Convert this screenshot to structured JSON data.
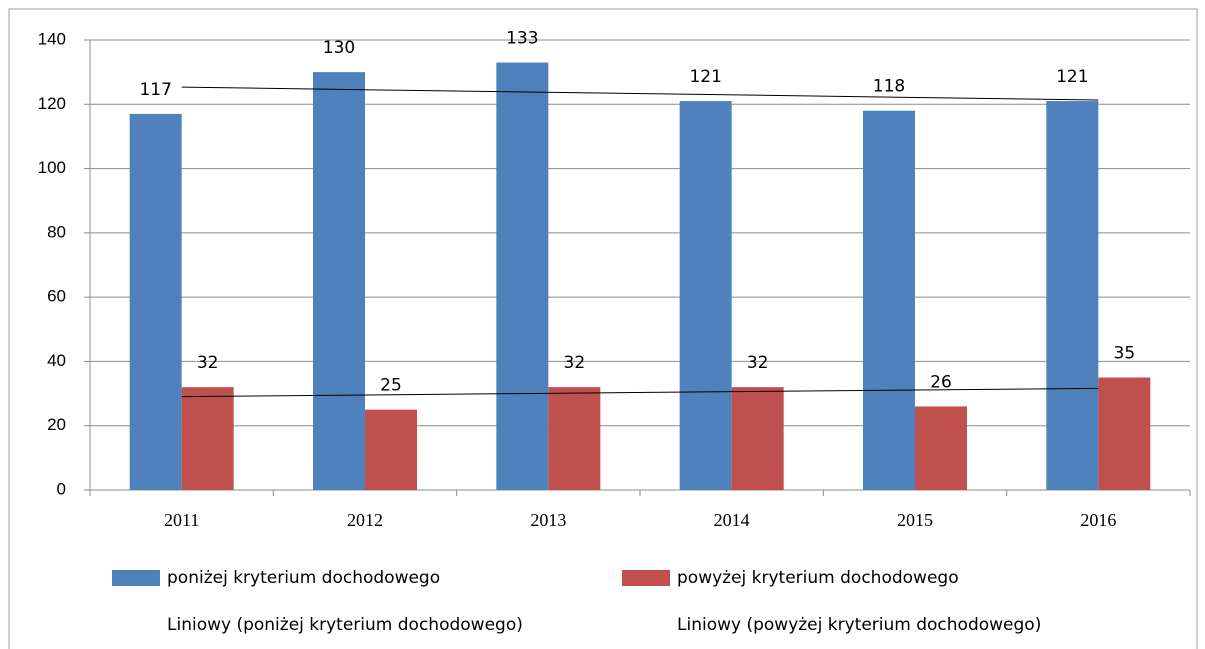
{
  "chart_data": {
    "type": "bar",
    "categories": [
      "2011",
      "2012",
      "2013",
      "2014",
      "2015",
      "2016"
    ],
    "series": [
      {
        "name": "poniżej kryterium dochodowego",
        "color": "#4f81bd",
        "values": [
          117,
          130,
          133,
          121,
          118,
          121
        ],
        "trendline": "Liniowy (poniżej kryterium dochodowego)"
      },
      {
        "name": "powyżej kryterium dochodowego",
        "color": "#c0504d",
        "values": [
          32,
          25,
          32,
          32,
          26,
          35
        ],
        "trendline": "Liniowy (powyżej kryterium dochodowego)"
      }
    ],
    "ylim": [
      0,
      140
    ],
    "yticks": [
      0,
      20,
      40,
      60,
      80,
      100,
      120,
      140
    ],
    "grid": true,
    "legend": "bottom"
  }
}
